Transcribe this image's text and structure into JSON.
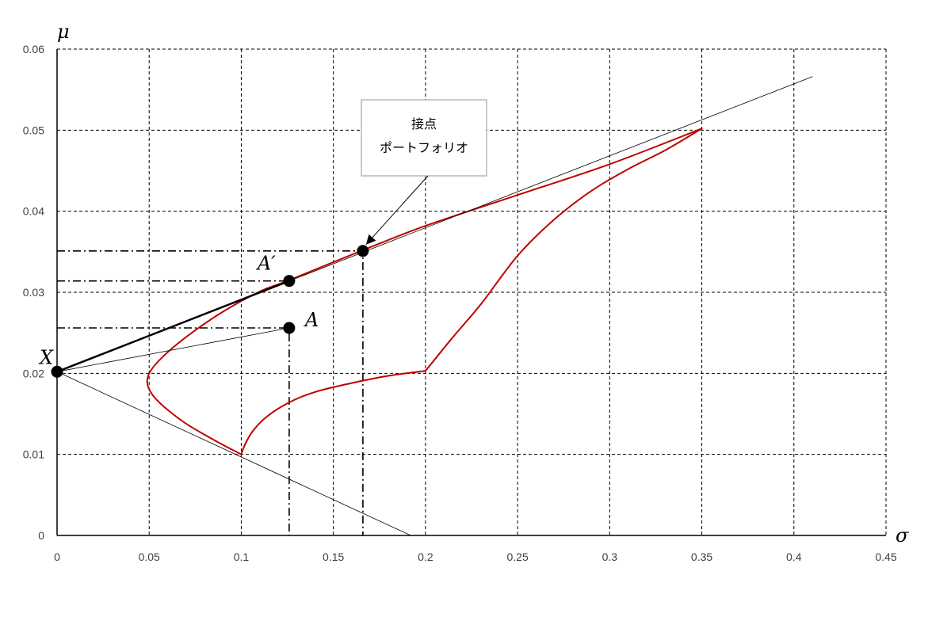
{
  "chart_data": {
    "type": "line",
    "x_axis_symbol": "σ",
    "y_axis_symbol": "μ",
    "xlim": [
      0,
      0.45
    ],
    "ylim": [
      0,
      0.06
    ],
    "grid": true,
    "x_ticks": [
      {
        "value": 0,
        "label": "0"
      },
      {
        "value": 0.05,
        "label": "0.05"
      },
      {
        "value": 0.1,
        "label": "0.1"
      },
      {
        "value": 0.15,
        "label": "0.15"
      },
      {
        "value": 0.2,
        "label": "0.2"
      },
      {
        "value": 0.25,
        "label": "0.25"
      },
      {
        "value": 0.3,
        "label": "0.3"
      },
      {
        "value": 0.35,
        "label": "0.35"
      },
      {
        "value": 0.4,
        "label": "0.4"
      },
      {
        "value": 0.45,
        "label": "0.45"
      }
    ],
    "y_ticks": [
      {
        "value": 0,
        "label": "0"
      },
      {
        "value": 0.01,
        "label": "0.01"
      },
      {
        "value": 0.02,
        "label": "0.02"
      },
      {
        "value": 0.03,
        "label": "0.03"
      },
      {
        "value": 0.04,
        "label": "0.04"
      },
      {
        "value": 0.05,
        "label": "0.05"
      },
      {
        "value": 0.06,
        "label": "0.06"
      }
    ],
    "series": [
      {
        "kind": "curve",
        "color": "#c00000",
        "width": 2,
        "points": [
          [
            0.1,
            0.01
          ],
          [
            0.085,
            0.0118
          ],
          [
            0.07,
            0.0138
          ],
          [
            0.06,
            0.0155
          ],
          [
            0.053,
            0.017
          ],
          [
            0.0495,
            0.0183
          ],
          [
            0.049,
            0.0192
          ],
          [
            0.0505,
            0.0202
          ],
          [
            0.055,
            0.0215
          ],
          [
            0.063,
            0.0232
          ],
          [
            0.075,
            0.0253
          ],
          [
            0.09,
            0.0276
          ],
          [
            0.11,
            0.0301
          ],
          [
            0.125,
            0.0314
          ],
          [
            0.165,
            0.0351
          ],
          [
            0.2,
            0.0382
          ],
          [
            0.25,
            0.042
          ],
          [
            0.3,
            0.0458
          ],
          [
            0.35,
            0.0502
          ]
        ]
      },
      {
        "kind": "curve",
        "color": "#c00000",
        "width": 2,
        "points": [
          [
            0.1,
            0.01
          ],
          [
            0.102,
            0.0112
          ],
          [
            0.106,
            0.0128
          ],
          [
            0.113,
            0.0145
          ],
          [
            0.125,
            0.0163
          ],
          [
            0.14,
            0.0177
          ],
          [
            0.16,
            0.0188
          ],
          [
            0.18,
            0.0197
          ],
          [
            0.2,
            0.0203
          ]
        ]
      },
      {
        "kind": "curve",
        "color": "#c00000",
        "width": 2,
        "points": [
          [
            0.2,
            0.0203
          ],
          [
            0.215,
            0.0245
          ],
          [
            0.23,
            0.0285
          ],
          [
            0.25,
            0.0345
          ],
          [
            0.27,
            0.039
          ],
          [
            0.29,
            0.0425
          ],
          [
            0.31,
            0.0452
          ],
          [
            0.33,
            0.0475
          ],
          [
            0.35,
            0.0502
          ]
        ]
      },
      {
        "kind": "line",
        "color": "#000000",
        "width": 0.8,
        "points": [
          [
            0,
            0.0202
          ],
          [
            0.41,
            0.0566
          ]
        ]
      },
      {
        "kind": "line",
        "color": "#000000",
        "width": 0.8,
        "points": [
          [
            0,
            0.0202
          ],
          [
            0.192,
            0
          ]
        ]
      },
      {
        "kind": "line",
        "color": "#000000",
        "width": 0.8,
        "points": [
          [
            0,
            0.0202
          ],
          [
            0.126,
            0.0256
          ]
        ]
      },
      {
        "kind": "line",
        "color": "#000000",
        "width": 2.5,
        "points": [
          [
            0,
            0.0202
          ],
          [
            0.126,
            0.0314
          ]
        ]
      }
    ],
    "guides": [
      {
        "points": [
          [
            0,
            0.0256
          ],
          [
            0.126,
            0.0256
          ],
          [
            0.126,
            0
          ]
        ]
      },
      {
        "points": [
          [
            0,
            0.0314
          ],
          [
            0.126,
            0.0314
          ]
        ]
      },
      {
        "points": [
          [
            0,
            0.0351
          ],
          [
            0.166,
            0.0351
          ],
          [
            0.166,
            0
          ]
        ]
      }
    ],
    "points": [
      {
        "id": "X",
        "label": "X",
        "x": 0,
        "y": 0.0202
      },
      {
        "id": "A",
        "label": "A",
        "x": 0.126,
        "y": 0.0256
      },
      {
        "id": "A-prime",
        "label": "A′",
        "x": 0.126,
        "y": 0.0314
      },
      {
        "id": "tangent",
        "label": "",
        "x": 0.166,
        "y": 0.0351
      }
    ],
    "callout": {
      "lines": [
        "接点",
        "ポートフォリオ"
      ],
      "target_x": 0.166,
      "target_y": 0.0351
    }
  }
}
